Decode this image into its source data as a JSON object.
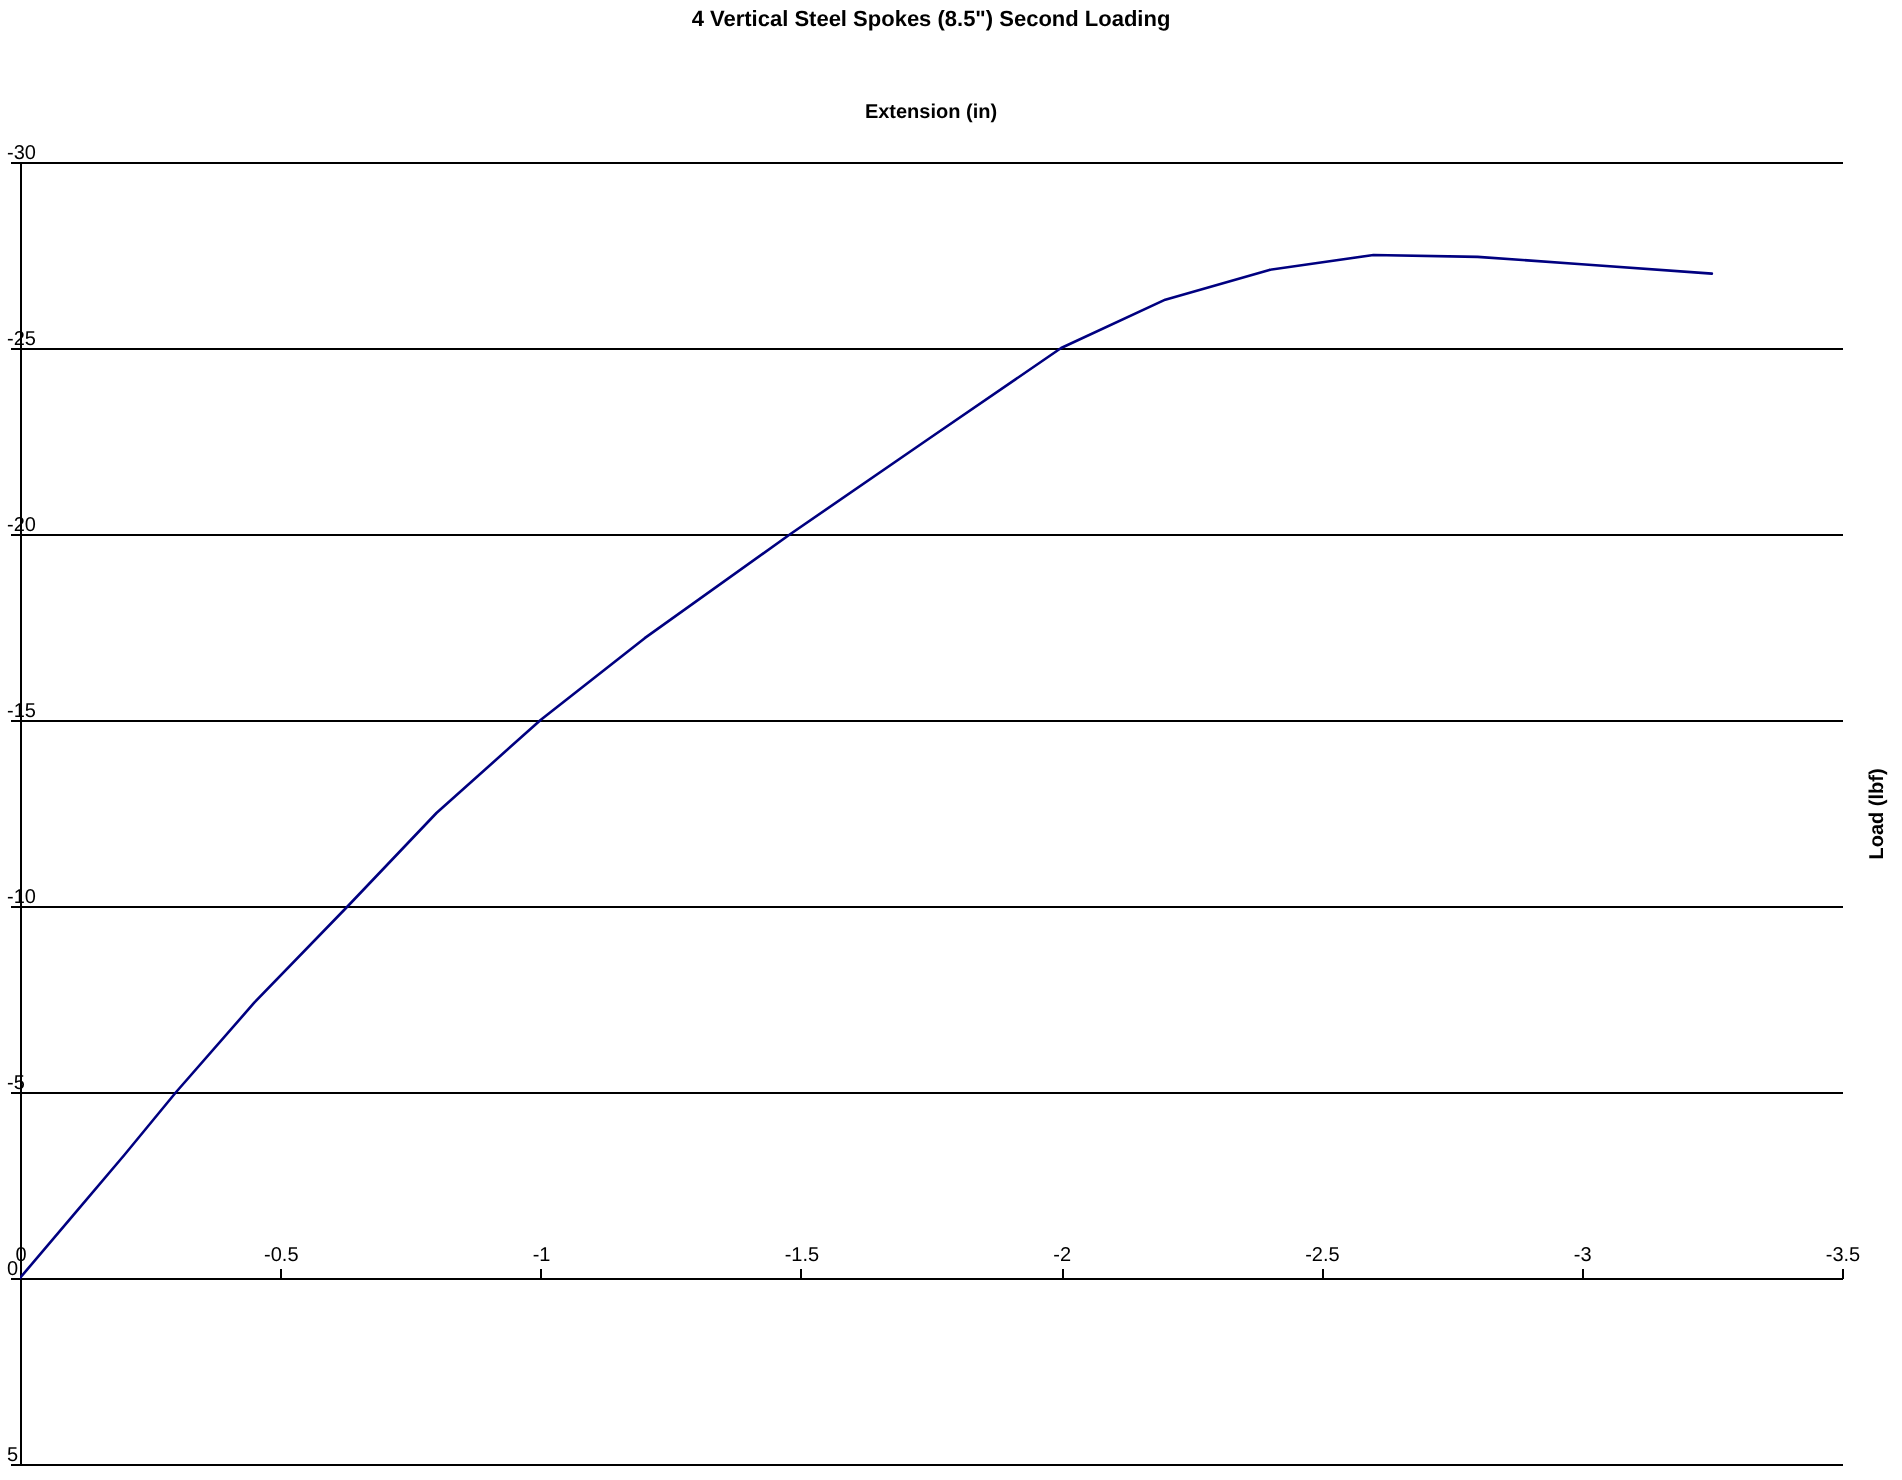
{
  "chart_data": {
    "type": "line",
    "title": "4 Vertical Steel Spokes (8.5\") Second Loading",
    "xlabel": "Extension (in)",
    "ylabel": "Load (lbf)",
    "x": [
      0,
      -0.1,
      -0.2,
      -0.3,
      -0.45,
      -0.63,
      -0.8,
      -1.0,
      -1.2,
      -1.48,
      -1.75,
      -2.0,
      -2.2,
      -2.4,
      -2.6,
      -2.8,
      -3.0,
      -3.25
    ],
    "series": [
      {
        "color": "#000080",
        "values": [
          0,
          -1.65,
          -3.3,
          -5,
          -7.4,
          -10,
          -12.5,
          -15,
          -17.2,
          -20,
          -22.6,
          -25,
          -26.3,
          -27.1,
          -27.5,
          -27.45,
          -27.25,
          -27.0
        ]
      }
    ],
    "xlim": [
      0,
      -3.5
    ],
    "xticks": [
      0,
      -0.5,
      -1,
      -1.5,
      -2,
      -2.5,
      -3,
      -3.5
    ],
    "ylim": [
      5,
      -30
    ],
    "yticks": [
      5,
      0,
      -5,
      -10,
      -15,
      -20,
      -25,
      -30
    ],
    "grid": "y",
    "marker": "none",
    "line_style": "solid"
  }
}
